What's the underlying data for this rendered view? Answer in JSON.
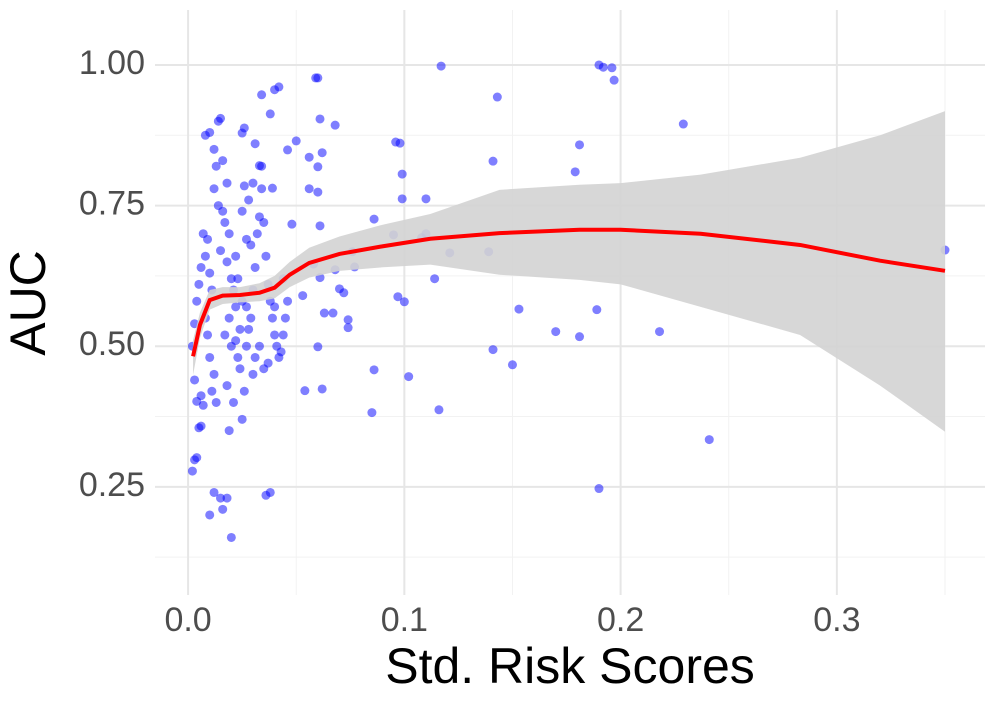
{
  "chart_data": {
    "type": "scatter",
    "x_label": "Std. Risk Scores",
    "y_label": "AUC",
    "xlim": [
      -0.0153,
      0.3685
    ],
    "ylim": [
      0.0577,
      1.0977
    ],
    "xticks": [
      {
        "value": 0,
        "label": "0.0"
      },
      0.1,
      0.2,
      0.3
    ],
    "yticks": [
      0.25,
      {
        "value": 0.5,
        "label": "0.50"
      },
      0.75,
      {
        "value": 1,
        "label": "1.00"
      }
    ],
    "minor_xticks": [
      0.05,
      0.15,
      0.25,
      0.35
    ],
    "minor_yticks": [
      0.125,
      0.375,
      0.625,
      0.875
    ],
    "grid": true,
    "color": "#0000ff",
    "x": [
      0.117,
      0.19,
      0.192,
      0.196,
      0.197,
      0.143,
      0.229,
      0.181,
      0.179,
      0.141,
      0.096,
      0.098,
      0.099,
      0.11,
      0.099,
      0.086,
      0.095,
      0.11,
      0.108,
      0.121,
      0.139,
      0.076,
      0.35,
      0.114,
      0.097,
      0.1,
      0.153,
      0.189,
      0.17,
      0.181,
      0.218,
      0.141,
      0.15,
      0.102,
      0.086,
      0.085,
      0.116,
      0.241,
      0.19,
      0.054,
      0.062,
      0.06,
      0.063,
      0.067,
      0.074,
      0.074,
      0.07,
      0.072,
      0.068,
      0.077,
      0.058,
      0.061,
      0.053,
      0.059,
      0.06,
      0.061,
      0.068,
      0.05,
      0.046,
      0.056,
      0.062,
      0.06,
      0.056,
      0.06,
      0.061,
      0.048,
      0.04,
      0.042,
      0.034,
      0.026,
      0.025,
      0.038,
      0.033,
      0.039,
      0.002,
      0.003,
      0.004,
      0.005,
      0.006,
      0.004,
      0.006,
      0.007,
      0.003,
      0.002,
      0.003,
      0.004,
      0.005,
      0.006,
      0.008,
      0.007,
      0.009,
      0.01,
      0.011,
      0.008,
      0.009,
      0.01,
      0.012,
      0.011,
      0.013,
      0.008,
      0.01,
      0.012,
      0.014,
      0.015,
      0.013,
      0.016,
      0.018,
      0.012,
      0.014,
      0.016,
      0.017,
      0.019,
      0.015,
      0.018,
      0.02,
      0.021,
      0.022,
      0.019,
      0.017,
      0.02,
      0.023,
      0.024,
      0.018,
      0.021,
      0.019,
      0.015,
      0.012,
      0.01,
      0.016,
      0.018,
      0.02,
      0.025,
      0.026,
      0.027,
      0.028,
      0.029,
      0.027,
      0.03,
      0.031,
      0.029,
      0.032,
      0.033,
      0.028,
      0.03,
      0.026,
      0.034,
      0.034,
      0.035,
      0.036,
      0.037,
      0.038,
      0.039,
      0.04,
      0.041,
      0.042,
      0.043,
      0.044,
      0.045,
      0.04,
      0.037,
      0.035,
      0.033,
      0.036,
      0.038,
      0.03,
      0.031,
      0.022,
      0.024,
      0.025,
      0.023,
      0.022,
      0.027,
      0.025,
      0.031,
      0.046,
      0.044
    ],
    "y": [
      0.998,
      1.0,
      0.996,
      0.995,
      0.973,
      0.943,
      0.895,
      0.858,
      0.81,
      0.829,
      0.863,
      0.861,
      0.806,
      0.762,
      0.762,
      0.726,
      0.698,
      0.7,
      0.693,
      0.666,
      0.668,
      0.668,
      0.671,
      0.62,
      0.588,
      0.579,
      0.566,
      0.565,
      0.526,
      0.517,
      0.526,
      0.494,
      0.467,
      0.446,
      0.458,
      0.382,
      0.387,
      0.334,
      0.247,
      0.421,
      0.424,
      0.499,
      0.559,
      0.559,
      0.547,
      0.533,
      0.602,
      0.595,
      0.636,
      0.641,
      0.646,
      0.622,
      0.59,
      0.977,
      0.977,
      0.904,
      0.893,
      0.865,
      0.849,
      0.836,
      0.844,
      0.819,
      0.78,
      0.774,
      0.714,
      0.717,
      0.956,
      0.961,
      0.947,
      0.888,
      0.879,
      0.913,
      0.821,
      0.781,
      0.278,
      0.298,
      0.302,
      0.355,
      0.358,
      0.402,
      0.412,
      0.395,
      0.44,
      0.5,
      0.54,
      0.58,
      0.61,
      0.64,
      0.66,
      0.7,
      0.69,
      0.63,
      0.6,
      0.55,
      0.52,
      0.48,
      0.45,
      0.42,
      0.4,
      0.875,
      0.88,
      0.85,
      0.9,
      0.905,
      0.82,
      0.83,
      0.79,
      0.78,
      0.75,
      0.74,
      0.72,
      0.7,
      0.67,
      0.65,
      0.62,
      0.6,
      0.57,
      0.55,
      0.52,
      0.5,
      0.48,
      0.46,
      0.43,
      0.4,
      0.35,
      0.23,
      0.24,
      0.2,
      0.21,
      0.23,
      0.16,
      0.37,
      0.42,
      0.5,
      0.53,
      0.55,
      0.57,
      0.6,
      0.64,
      0.68,
      0.7,
      0.73,
      0.76,
      0.79,
      0.785,
      0.78,
      0.82,
      0.72,
      0.66,
      0.61,
      0.58,
      0.55,
      0.52,
      0.5,
      0.48,
      0.49,
      0.52,
      0.55,
      0.57,
      0.47,
      0.46,
      0.5,
      0.235,
      0.24,
      0.45,
      0.48,
      0.51,
      0.53,
      0.58,
      0.62,
      0.66,
      0.69,
      0.74,
      0.86,
      0.58,
      0.62
    ],
    "smooth": {
      "color": "#ff0000",
      "band_color": "#d3d3d3",
      "x": [
        0.0023,
        0.0055,
        0.01,
        0.016,
        0.024,
        0.033,
        0.04,
        0.047,
        0.056,
        0.07,
        0.089,
        0.112,
        0.144,
        0.181,
        0.2,
        0.237,
        0.283,
        0.32,
        0.35
      ],
      "y": [
        0.482,
        0.538,
        0.582,
        0.59,
        0.591,
        0.595,
        0.604,
        0.627,
        0.648,
        0.664,
        0.677,
        0.691,
        0.701,
        0.707,
        0.707,
        0.7,
        0.68,
        0.652,
        0.634
      ],
      "upper": [
        0.511,
        0.56,
        0.6,
        0.605,
        0.605,
        0.612,
        0.625,
        0.65,
        0.675,
        0.695,
        0.715,
        0.735,
        0.778,
        0.787,
        0.79,
        0.805,
        0.835,
        0.875,
        0.918
      ],
      "lower": [
        0.449,
        0.515,
        0.565,
        0.575,
        0.578,
        0.58,
        0.585,
        0.605,
        0.622,
        0.634,
        0.64,
        0.645,
        0.627,
        0.618,
        0.61,
        0.57,
        0.52,
        0.43,
        0.348
      ]
    }
  }
}
